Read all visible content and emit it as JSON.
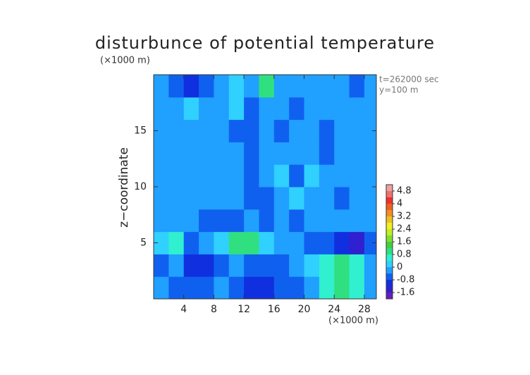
{
  "chart_data": {
    "type": "contour",
    "title": "disturbunce of potential temperature",
    "x_unit": "(×1000 m)",
    "y_unit": "(×1000 m)",
    "ylabel": "z−coordinate",
    "annotations": [
      "t=262000 sec",
      "y=100 m"
    ],
    "xlim": [
      0,
      29.6
    ],
    "ylim": [
      0,
      20
    ],
    "xticks": [
      4,
      8,
      12,
      16,
      20,
      24,
      28
    ],
    "yticks": [
      5,
      10,
      15
    ],
    "x": [
      1,
      3,
      5,
      7,
      9,
      11,
      13,
      15,
      17,
      19,
      21,
      23,
      25,
      27,
      29
    ],
    "y": [
      1,
      3,
      5,
      7,
      9,
      11,
      13,
      15,
      17,
      19
    ],
    "z": [
      [
        -0.4,
        -0.6,
        -0.8,
        -0.6,
        -0.3,
        -0.8,
        -1.0,
        -0.9,
        -0.7,
        -0.5,
        -0.2,
        0.6,
        0.8,
        0.7,
        -0.2
      ],
      [
        -0.5,
        -0.3,
        -0.9,
        -1.2,
        -0.6,
        -0.4,
        -0.8,
        -0.6,
        -0.5,
        -0.3,
        0,
        0.6,
        0.9,
        0.6,
        -0.3
      ],
      [
        0.3,
        0.6,
        -0.5,
        -0.2,
        0.2,
        1.0,
        0.8,
        0.3,
        -0.3,
        -0.2,
        -0.5,
        -0.8,
        -1.2,
        -1.4,
        -0.5
      ],
      [
        -0.2,
        -0.3,
        -0.2,
        -0.6,
        -0.8,
        -0.5,
        -0.3,
        -0.6,
        -0.3,
        -0.5,
        -0.3,
        -0.2,
        -0.3,
        -0.4,
        -0.3
      ],
      [
        -0.2,
        -0.3,
        -0.4,
        -0.2,
        -0.4,
        -0.2,
        -0.6,
        -0.5,
        -0.3,
        0.1,
        -0.4,
        -0.2,
        -0.5,
        -0.3,
        -0.2
      ],
      [
        -0.1,
        -0.2,
        -0.3,
        -0.2,
        -0.3,
        -0.1,
        -0.6,
        -0.2,
        0.1,
        -0.5,
        0.1,
        -0.4,
        -0.2,
        -0.3,
        -0.2
      ],
      [
        -0.2,
        -0.4,
        -0.3,
        -0.2,
        -0.1,
        -0.3,
        -0.7,
        -0.4,
        -0.2,
        -0.3,
        -0.2,
        -0.5,
        -0.3,
        -0.2,
        -0.1
      ],
      [
        -0.1,
        -0.3,
        -0.2,
        -0.4,
        -0.2,
        -0.5,
        -0.6,
        -0.3,
        -0.5,
        -0.3,
        -0.2,
        -0.5,
        -0.2,
        -0.1,
        -0.3
      ],
      [
        -0.2,
        -0.1,
        0.1,
        -0.3,
        -0.3,
        0.1,
        -0.5,
        -0.4,
        -0.1,
        -0.6,
        -0.3,
        -0.2,
        -0.3,
        -0.4,
        -0.2
      ],
      [
        -0.3,
        -0.6,
        -1.1,
        -0.8,
        -0.2,
        0.3,
        -0.3,
        0.8,
        -0.1,
        -0.4,
        -0.2,
        -0.3,
        -0.4,
        -0.5,
        -0.3
      ]
    ],
    "colorbar": {
      "levels": [
        -2.0,
        -1.6,
        -1.2,
        -0.8,
        -0.4,
        0,
        0.4,
        0.8,
        1.2,
        1.6,
        2.0,
        2.4,
        2.8,
        3.2,
        3.6,
        4.0,
        4.4,
        4.8,
        5.2
      ],
      "colors": [
        "#6020c0",
        "#3020d0",
        "#1030e0",
        "#1060f0",
        "#20a0ff",
        "#30d0ff",
        "#30f0d0",
        "#30e080",
        "#40d040",
        "#80e030",
        "#c0f020",
        "#f0f020",
        "#f0c020",
        "#f09020",
        "#f06020",
        "#f03030",
        "#f07070",
        "#f0a0a0"
      ],
      "ticks": [
        4.8,
        4,
        3.2,
        2.4,
        1.6,
        0.8,
        0,
        -0.8,
        -1.6
      ]
    }
  }
}
